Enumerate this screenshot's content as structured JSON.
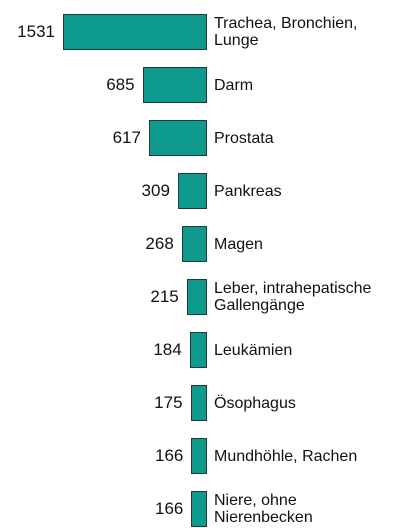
{
  "chart_data": {
    "type": "bar",
    "orientation": "horizontal",
    "color": "#0e9a8c",
    "categories": [
      "Trachea, Bronchien, Lunge",
      "Darm",
      "Prostata",
      "Pankreas",
      "Magen",
      "Leber, intrahepatische Gallengänge",
      "Leukämien",
      "Ösophagus",
      "Mundhöhle, Rachen",
      "Niere, ohne Nierenbecken"
    ],
    "values": [
      1531,
      685,
      617,
      309,
      268,
      215,
      184,
      175,
      166,
      166
    ]
  }
}
